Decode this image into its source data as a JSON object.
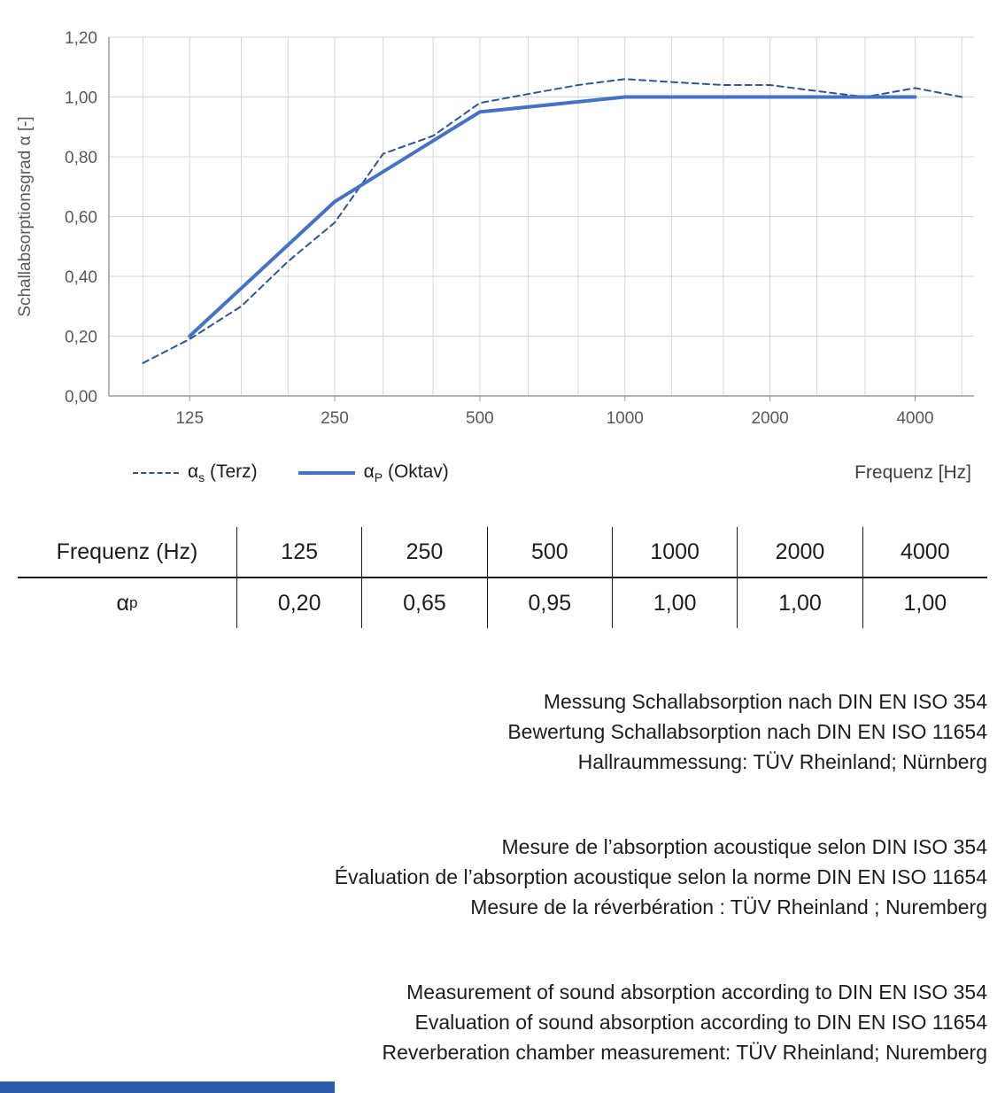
{
  "chart_data": {
    "type": "line",
    "title": "",
    "xlabel": "Frequenz [Hz]",
    "ylabel": "Schallabsorptionsgrad α [-]",
    "x_scale": "log",
    "xlim": [
      85,
      5300
    ],
    "ylim": [
      0,
      1.2
    ],
    "grid": true,
    "legend_position": "bottom-left",
    "y_ticks": [
      {
        "v": 0.0,
        "label": "0,00"
      },
      {
        "v": 0.2,
        "label": "0,20"
      },
      {
        "v": 0.4,
        "label": "0,40"
      },
      {
        "v": 0.6,
        "label": "0,60"
      },
      {
        "v": 0.8,
        "label": "0,80"
      },
      {
        "v": 1.0,
        "label": "1,00"
      },
      {
        "v": 1.2,
        "label": "1,20"
      }
    ],
    "x_ticks": [
      {
        "v": 125,
        "label": "125"
      },
      {
        "v": 250,
        "label": "250"
      },
      {
        "v": 500,
        "label": "500"
      },
      {
        "v": 1000,
        "label": "1000"
      },
      {
        "v": 2000,
        "label": "2000"
      },
      {
        "v": 4000,
        "label": "4000"
      }
    ],
    "grid_x": [
      100,
      125,
      160,
      200,
      250,
      315,
      400,
      500,
      630,
      800,
      1000,
      1250,
      1600,
      2000,
      2500,
      3150,
      4000,
      5000
    ],
    "series": [
      {
        "name": "αs (Terz)",
        "style": "dashed",
        "color": "#2f5496",
        "x": [
          100,
          125,
          160,
          200,
          250,
          315,
          400,
          500,
          630,
          800,
          1000,
          1250,
          1600,
          2000,
          2500,
          3150,
          4000,
          5000
        ],
        "values": [
          0.11,
          0.19,
          0.3,
          0.45,
          0.58,
          0.81,
          0.87,
          0.98,
          1.01,
          1.04,
          1.06,
          1.05,
          1.04,
          1.04,
          1.02,
          1.0,
          1.03,
          1.0
        ]
      },
      {
        "name": "αP (Oktav)",
        "style": "solid",
        "color": "#4472c4",
        "x": [
          125,
          250,
          500,
          1000,
          2000,
          4000
        ],
        "values": [
          0.2,
          0.65,
          0.95,
          1.0,
          1.0,
          1.0
        ]
      }
    ]
  },
  "legend": [
    {
      "symbol": "α",
      "sub": "s",
      "rest": " (Terz)"
    },
    {
      "symbol": "α",
      "sub": "P",
      "rest": " (Oktav)"
    }
  ],
  "table": {
    "header": [
      "Frequenz (Hz)",
      "125",
      "250",
      "500",
      "1000",
      "2000",
      "4000"
    ],
    "row_label_symbol": "α",
    "row_label_sub": "p",
    "values": [
      "0,20",
      "0,65",
      "0,95",
      "1,00",
      "1,00",
      "1,00"
    ]
  },
  "notes": {
    "de": [
      "Messung Schallabsorption nach DIN EN ISO 354",
      "Bewertung Schallabsorption nach DIN EN ISO 11654",
      "Hallraummessung: TÜV Rheinland; Nürnberg"
    ],
    "fr": [
      "Mesure de l’absorption acoustique selon DIN ISO 354",
      "Évaluation de l’absorption acoustique selon la norme DIN EN ISO 11654",
      "Mesure de la réverbération : TÜV Rheinland ; Nuremberg"
    ],
    "en": [
      "Measurement of sound absorption according to DIN EN ISO 354",
      "Evaluation of sound absorption according to DIN EN ISO 11654",
      "Reverberation chamber measurement: TÜV Rheinland; Nuremberg"
    ]
  },
  "colors": {
    "grid": "#d6d6d6",
    "axis": "#9a9a9a",
    "footer_bar": "#2e5ca8"
  }
}
